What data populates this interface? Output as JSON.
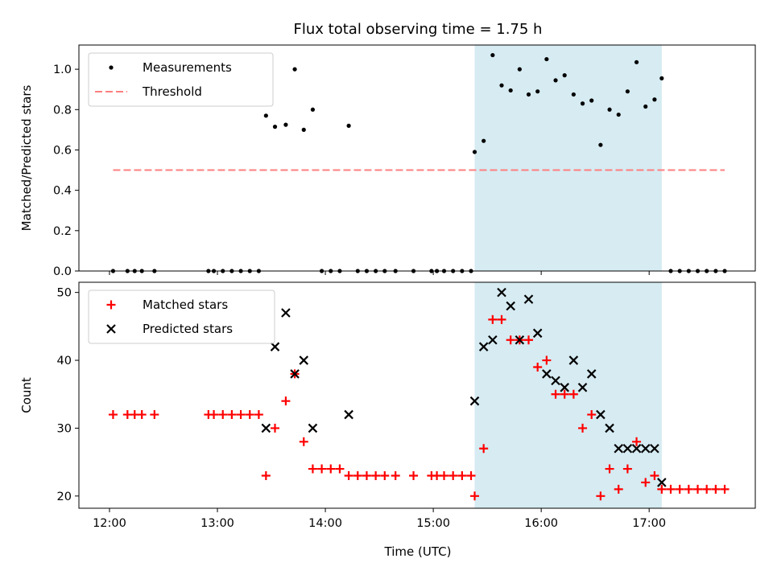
{
  "chart_data": {
    "title": "Flux total observing time = 1.75 h",
    "shaded_band": {
      "x_start": "15:23",
      "x_end": "17:07",
      "color": "#add8e6"
    },
    "xlabel": "Time (UTC)",
    "xlim": [
      "11:43",
      "17:59"
    ],
    "x_ticks": [
      "12:00",
      "13:00",
      "14:00",
      "15:00",
      "16:00",
      "17:00"
    ],
    "panels": [
      {
        "type": "scatter",
        "ylabel": "Matched/Predicted stars",
        "ylim": [
          0,
          1.12
        ],
        "y_ticks": [
          "0.0",
          "0.2",
          "0.4",
          "0.6",
          "0.8",
          "1.0"
        ],
        "legend_position": "upper-left",
        "legend": [
          "Measurements",
          "Threshold"
        ],
        "threshold": {
          "value": 0.5,
          "x_start": "12:02",
          "x_end": "17:42",
          "color": "#ff7f7f"
        },
        "series": [
          {
            "name": "Measurements",
            "marker": "dot",
            "color": "#000000",
            "points": [
              [
                "12:02",
                0
              ],
              [
                "12:10",
                0
              ],
              [
                "12:14",
                0
              ],
              [
                "12:18",
                0
              ],
              [
                "12:25",
                0
              ],
              [
                "12:55",
                0
              ],
              [
                "12:58",
                0
              ],
              [
                "13:03",
                0
              ],
              [
                "13:08",
                0
              ],
              [
                "13:13",
                0
              ],
              [
                "13:18",
                0
              ],
              [
                "13:23",
                0
              ],
              [
                "13:27",
                0.77
              ],
              [
                "13:32",
                0.715
              ],
              [
                "13:38",
                0.725
              ],
              [
                "13:43",
                1.0
              ],
              [
                "13:48",
                0.7
              ],
              [
                "13:53",
                0.8
              ],
              [
                "13:58",
                0
              ],
              [
                "14:03",
                0
              ],
              [
                "14:08",
                0
              ],
              [
                "14:13",
                0.72
              ],
              [
                "14:18",
                0
              ],
              [
                "14:23",
                0
              ],
              [
                "14:28",
                0
              ],
              [
                "14:33",
                0
              ],
              [
                "14:39",
                0
              ],
              [
                "14:49",
                0
              ],
              [
                "14:59",
                0
              ],
              [
                "15:02",
                0
              ],
              [
                "15:06",
                0
              ],
              [
                "15:11",
                0
              ],
              [
                "15:16",
                0
              ],
              [
                "15:21",
                0
              ],
              [
                "15:23",
                0.59
              ],
              [
                "15:28",
                0.645
              ],
              [
                "15:33",
                1.07
              ],
              [
                "15:38",
                0.92
              ],
              [
                "15:43",
                0.895
              ],
              [
                "15:48",
                1.0
              ],
              [
                "15:53",
                0.875
              ],
              [
                "15:58",
                0.89
              ],
              [
                "16:03",
                1.05
              ],
              [
                "16:08",
                0.945
              ],
              [
                "16:13",
                0.97
              ],
              [
                "16:18",
                0.875
              ],
              [
                "16:23",
                0.83
              ],
              [
                "16:28",
                0.845
              ],
              [
                "16:33",
                0.625
              ],
              [
                "16:38",
                0.8
              ],
              [
                "16:43",
                0.775
              ],
              [
                "16:48",
                0.89
              ],
              [
                "16:53",
                1.035
              ],
              [
                "16:58",
                0.815
              ],
              [
                "17:03",
                0.85
              ],
              [
                "17:07",
                0.955
              ],
              [
                "17:12",
                0
              ],
              [
                "17:17",
                0
              ],
              [
                "17:22",
                0
              ],
              [
                "17:27",
                0
              ],
              [
                "17:32",
                0
              ],
              [
                "17:37",
                0
              ],
              [
                "17:42",
                0
              ]
            ]
          }
        ]
      },
      {
        "type": "scatter",
        "ylabel": "Count",
        "ylim": [
          18.2,
          51.5
        ],
        "y_ticks": [
          "20",
          "30",
          "40",
          "50"
        ],
        "legend_position": "upper-left",
        "legend": [
          "Matched stars",
          "Predicted stars"
        ],
        "series": [
          {
            "name": "Matched stars",
            "marker": "plus",
            "color": "#ff0000",
            "points": [
              [
                "12:02",
                32
              ],
              [
                "12:10",
                32
              ],
              [
                "12:14",
                32
              ],
              [
                "12:18",
                32
              ],
              [
                "12:25",
                32
              ],
              [
                "12:55",
                32
              ],
              [
                "12:58",
                32
              ],
              [
                "13:03",
                32
              ],
              [
                "13:08",
                32
              ],
              [
                "13:13",
                32
              ],
              [
                "13:18",
                32
              ],
              [
                "13:23",
                32
              ],
              [
                "13:27",
                23
              ],
              [
                "13:32",
                30
              ],
              [
                "13:38",
                34
              ],
              [
                "13:43",
                38
              ],
              [
                "13:48",
                28
              ],
              [
                "13:53",
                24
              ],
              [
                "13:58",
                24
              ],
              [
                "14:03",
                24
              ],
              [
                "14:08",
                24
              ],
              [
                "14:13",
                23
              ],
              [
                "14:18",
                23
              ],
              [
                "14:23",
                23
              ],
              [
                "14:28",
                23
              ],
              [
                "14:33",
                23
              ],
              [
                "14:39",
                23
              ],
              [
                "14:49",
                23
              ],
              [
                "14:59",
                23
              ],
              [
                "15:02",
                23
              ],
              [
                "15:06",
                23
              ],
              [
                "15:11",
                23
              ],
              [
                "15:16",
                23
              ],
              [
                "15:21",
                23
              ],
              [
                "15:23",
                20
              ],
              [
                "15:28",
                27
              ],
              [
                "15:33",
                46
              ],
              [
                "15:38",
                46
              ],
              [
                "15:43",
                43
              ],
              [
                "15:48",
                43
              ],
              [
                "15:53",
                43
              ],
              [
                "15:58",
                39
              ],
              [
                "16:03",
                40
              ],
              [
                "16:08",
                35
              ],
              [
                "16:13",
                35
              ],
              [
                "16:18",
                35
              ],
              [
                "16:23",
                30
              ],
              [
                "16:28",
                32
              ],
              [
                "16:33",
                20
              ],
              [
                "16:38",
                24
              ],
              [
                "16:43",
                21
              ],
              [
                "16:48",
                24
              ],
              [
                "16:53",
                28
              ],
              [
                "16:58",
                22
              ],
              [
                "17:03",
                23
              ],
              [
                "17:07",
                21
              ],
              [
                "17:12",
                21
              ],
              [
                "17:17",
                21
              ],
              [
                "17:22",
                21
              ],
              [
                "17:27",
                21
              ],
              [
                "17:32",
                21
              ],
              [
                "17:37",
                21
              ],
              [
                "17:42",
                21
              ]
            ]
          },
          {
            "name": "Predicted stars",
            "marker": "x",
            "color": "#000000",
            "points": [
              [
                "13:27",
                30
              ],
              [
                "13:32",
                42
              ],
              [
                "13:38",
                47
              ],
              [
                "13:43",
                38
              ],
              [
                "13:48",
                40
              ],
              [
                "13:53",
                30
              ],
              [
                "14:13",
                32
              ],
              [
                "15:23",
                34
              ],
              [
                "15:28",
                42
              ],
              [
                "15:33",
                43
              ],
              [
                "15:38",
                50
              ],
              [
                "15:43",
                48
              ],
              [
                "15:48",
                43
              ],
              [
                "15:53",
                49
              ],
              [
                "15:58",
                44
              ],
              [
                "16:03",
                38
              ],
              [
                "16:08",
                37
              ],
              [
                "16:13",
                36
              ],
              [
                "16:18",
                40
              ],
              [
                "16:23",
                36
              ],
              [
                "16:28",
                38
              ],
              [
                "16:33",
                32
              ],
              [
                "16:38",
                30
              ],
              [
                "16:43",
                27
              ],
              [
                "16:48",
                27
              ],
              [
                "16:53",
                27
              ],
              [
                "16:58",
                27
              ],
              [
                "17:03",
                27
              ],
              [
                "17:07",
                22
              ]
            ]
          }
        ]
      }
    ]
  }
}
